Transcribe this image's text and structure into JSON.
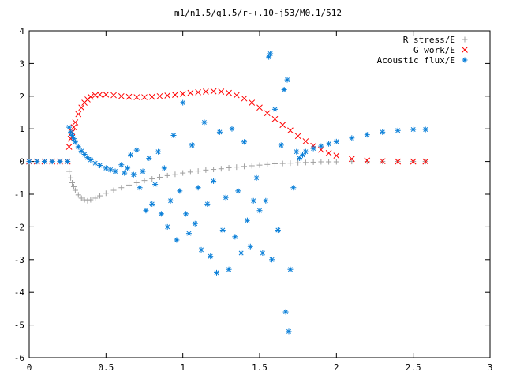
{
  "chart_data": {
    "type": "scatter",
    "title": "m1/n1.5/q1.5/r-+.10-j53/M0.1/512",
    "xlabel": "",
    "ylabel": "",
    "xlim": [
      0,
      3
    ],
    "ylim": [
      -6,
      4
    ],
    "x_ticks": [
      "0",
      "0.5",
      "1",
      "1.5",
      "2",
      "2.5",
      "3"
    ],
    "y_ticks": [
      "4",
      "3",
      "2",
      "1",
      "0",
      "-1",
      "-2",
      "-3",
      "-4",
      "-5",
      "-6"
    ],
    "grid": false,
    "legend_position": "top-right",
    "series": [
      {
        "name": "R stress/E",
        "marker": "plus",
        "color": "#a0a0a0",
        "points": [
          [
            0,
            0
          ],
          [
            0.05,
            0
          ],
          [
            0.1,
            0
          ],
          [
            0.15,
            0
          ],
          [
            0.2,
            0
          ],
          [
            0.25,
            0
          ],
          [
            0.26,
            -0.3
          ],
          [
            0.27,
            -0.5
          ],
          [
            0.28,
            -0.65
          ],
          [
            0.29,
            -0.77
          ],
          [
            0.3,
            -0.88
          ],
          [
            0.32,
            -1.02
          ],
          [
            0.34,
            -1.12
          ],
          [
            0.36,
            -1.17
          ],
          [
            0.38,
            -1.2
          ],
          [
            0.4,
            -1.17
          ],
          [
            0.43,
            -1.12
          ],
          [
            0.46,
            -1.05
          ],
          [
            0.5,
            -0.97
          ],
          [
            0.55,
            -0.88
          ],
          [
            0.6,
            -0.8
          ],
          [
            0.65,
            -0.72
          ],
          [
            0.7,
            -0.65
          ],
          [
            0.75,
            -0.58
          ],
          [
            0.8,
            -0.53
          ],
          [
            0.85,
            -0.48
          ],
          [
            0.9,
            -0.43
          ],
          [
            0.95,
            -0.39
          ],
          [
            1.0,
            -0.35
          ],
          [
            1.05,
            -0.32
          ],
          [
            1.1,
            -0.29
          ],
          [
            1.15,
            -0.26
          ],
          [
            1.2,
            -0.24
          ],
          [
            1.25,
            -0.22
          ],
          [
            1.3,
            -0.19
          ],
          [
            1.35,
            -0.17
          ],
          [
            1.4,
            -0.15
          ],
          [
            1.45,
            -0.13
          ],
          [
            1.5,
            -0.11
          ],
          [
            1.55,
            -0.09
          ],
          [
            1.6,
            -0.07
          ],
          [
            1.65,
            -0.06
          ],
          [
            1.7,
            -0.05
          ],
          [
            1.75,
            -0.04
          ],
          [
            1.8,
            -0.03
          ],
          [
            1.85,
            -0.02
          ],
          [
            1.9,
            -0.01
          ],
          [
            1.95,
            -0.01
          ],
          [
            2.0,
            -0.01
          ],
          [
            2.1,
            0
          ],
          [
            2.2,
            0
          ],
          [
            2.3,
            0
          ],
          [
            2.4,
            0
          ],
          [
            2.5,
            0
          ],
          [
            2.58,
            0
          ]
        ]
      },
      {
        "name": "G work/E",
        "marker": "cross",
        "color": "#ff0000",
        "points": [
          [
            0,
            0
          ],
          [
            0.05,
            0
          ],
          [
            0.1,
            0
          ],
          [
            0.15,
            0
          ],
          [
            0.2,
            0
          ],
          [
            0.25,
            0
          ],
          [
            0.26,
            0.45
          ],
          [
            0.27,
            0.7
          ],
          [
            0.28,
            0.9
          ],
          [
            0.29,
            1.05
          ],
          [
            0.3,
            1.2
          ],
          [
            0.32,
            1.45
          ],
          [
            0.34,
            1.65
          ],
          [
            0.36,
            1.8
          ],
          [
            0.38,
            1.9
          ],
          [
            0.4,
            1.98
          ],
          [
            0.43,
            2.03
          ],
          [
            0.46,
            2.05
          ],
          [
            0.5,
            2.05
          ],
          [
            0.55,
            2.03
          ],
          [
            0.6,
            2.0
          ],
          [
            0.65,
            1.98
          ],
          [
            0.7,
            1.97
          ],
          [
            0.75,
            1.97
          ],
          [
            0.8,
            1.98
          ],
          [
            0.85,
            2.0
          ],
          [
            0.9,
            2.02
          ],
          [
            0.95,
            2.04
          ],
          [
            1.0,
            2.07
          ],
          [
            1.05,
            2.1
          ],
          [
            1.1,
            2.12
          ],
          [
            1.15,
            2.14
          ],
          [
            1.2,
            2.15
          ],
          [
            1.25,
            2.14
          ],
          [
            1.3,
            2.1
          ],
          [
            1.35,
            2.03
          ],
          [
            1.4,
            1.93
          ],
          [
            1.45,
            1.8
          ],
          [
            1.5,
            1.65
          ],
          [
            1.55,
            1.48
          ],
          [
            1.6,
            1.3
          ],
          [
            1.65,
            1.12
          ],
          [
            1.7,
            0.95
          ],
          [
            1.75,
            0.78
          ],
          [
            1.8,
            0.62
          ],
          [
            1.85,
            0.48
          ],
          [
            1.9,
            0.36
          ],
          [
            1.95,
            0.26
          ],
          [
            2.0,
            0.18
          ],
          [
            2.1,
            0.08
          ],
          [
            2.2,
            0.03
          ],
          [
            2.3,
            0.01
          ],
          [
            2.4,
            0
          ],
          [
            2.5,
            0
          ],
          [
            2.58,
            0
          ]
        ]
      },
      {
        "name": "Acoustic flux/E",
        "marker": "star",
        "color": "#0a7fd8",
        "points": [
          [
            0,
            0
          ],
          [
            0.05,
            0
          ],
          [
            0.1,
            0
          ],
          [
            0.15,
            0
          ],
          [
            0.2,
            0
          ],
          [
            0.25,
            0
          ],
          [
            0.26,
            1.05
          ],
          [
            0.27,
            0.9
          ],
          [
            0.28,
            0.8
          ],
          [
            0.29,
            0.7
          ],
          [
            0.3,
            0.6
          ],
          [
            0.32,
            0.45
          ],
          [
            0.34,
            0.32
          ],
          [
            0.36,
            0.22
          ],
          [
            0.38,
            0.12
          ],
          [
            0.4,
            0.05
          ],
          [
            0.43,
            -0.05
          ],
          [
            0.46,
            -0.12
          ],
          [
            0.5,
            -0.2
          ],
          [
            0.53,
            -0.25
          ],
          [
            0.56,
            -0.3
          ],
          [
            0.6,
            -0.1
          ],
          [
            0.62,
            -0.35
          ],
          [
            0.64,
            -0.2
          ],
          [
            0.66,
            0.2
          ],
          [
            0.68,
            -0.4
          ],
          [
            0.7,
            0.35
          ],
          [
            0.72,
            -0.8
          ],
          [
            0.74,
            -0.3
          ],
          [
            0.76,
            -1.5
          ],
          [
            0.78,
            0.1
          ],
          [
            0.8,
            -1.3
          ],
          [
            0.82,
            -0.7
          ],
          [
            0.84,
            0.3
          ],
          [
            0.86,
            -1.6
          ],
          [
            0.88,
            -0.2
          ],
          [
            0.9,
            -2.0
          ],
          [
            0.92,
            -1.2
          ],
          [
            0.94,
            0.8
          ],
          [
            0.96,
            -2.4
          ],
          [
            0.98,
            -0.9
          ],
          [
            1.0,
            1.8
          ],
          [
            1.02,
            -1.6
          ],
          [
            1.04,
            -2.2
          ],
          [
            1.06,
            0.5
          ],
          [
            1.08,
            -1.9
          ],
          [
            1.1,
            -0.8
          ],
          [
            1.12,
            -2.7
          ],
          [
            1.14,
            1.2
          ],
          [
            1.16,
            -1.3
          ],
          [
            1.18,
            -2.9
          ],
          [
            1.2,
            -0.6
          ],
          [
            1.22,
            -3.4
          ],
          [
            1.24,
            0.9
          ],
          [
            1.26,
            -2.1
          ],
          [
            1.28,
            -1.1
          ],
          [
            1.3,
            -3.3
          ],
          [
            1.32,
            1.0
          ],
          [
            1.34,
            -2.3
          ],
          [
            1.36,
            -0.9
          ],
          [
            1.38,
            -2.8
          ],
          [
            1.4,
            0.6
          ],
          [
            1.42,
            -1.8
          ],
          [
            1.44,
            -2.6
          ],
          [
            1.46,
            -1.2
          ],
          [
            1.48,
            -0.5
          ],
          [
            1.5,
            -1.5
          ],
          [
            1.52,
            -2.8
          ],
          [
            1.54,
            -1.2
          ],
          [
            1.56,
            3.2
          ],
          [
            1.57,
            3.3
          ],
          [
            1.58,
            -3.0
          ],
          [
            1.6,
            1.6
          ],
          [
            1.62,
            -2.1
          ],
          [
            1.64,
            0.5
          ],
          [
            1.66,
            2.2
          ],
          [
            1.67,
            -4.6
          ],
          [
            1.68,
            2.5
          ],
          [
            1.69,
            -5.2
          ],
          [
            1.7,
            -3.3
          ],
          [
            1.72,
            -0.8
          ],
          [
            1.74,
            0.3
          ],
          [
            1.76,
            0.1
          ],
          [
            1.78,
            0.2
          ],
          [
            1.8,
            0.3
          ],
          [
            1.85,
            0.4
          ],
          [
            1.9,
            0.47
          ],
          [
            1.95,
            0.54
          ],
          [
            2.0,
            0.61
          ],
          [
            2.1,
            0.72
          ],
          [
            2.2,
            0.82
          ],
          [
            2.3,
            0.9
          ],
          [
            2.4,
            0.95
          ],
          [
            2.5,
            0.98
          ],
          [
            2.58,
            0.98
          ]
        ]
      }
    ]
  }
}
